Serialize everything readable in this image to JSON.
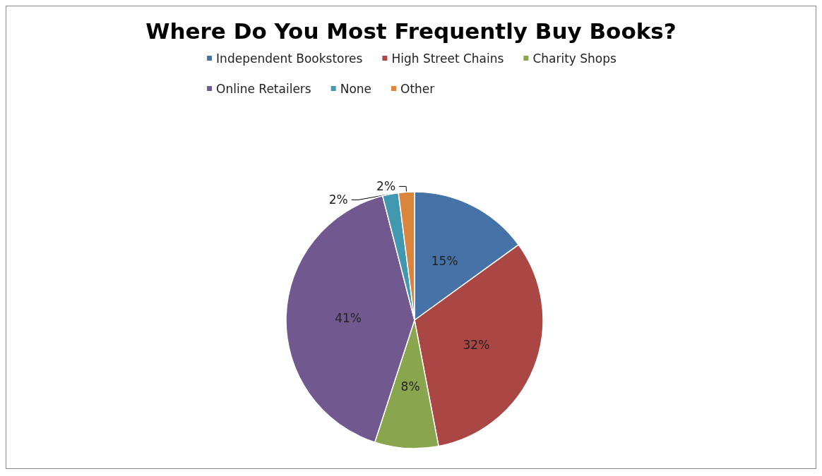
{
  "chart_data": {
    "type": "pie",
    "title": "Where Do You Most Frequently Buy Books?",
    "categories": [
      "Independent Bookstores",
      "High Street Chains",
      "Charity Shops",
      "Online Retailers",
      "None",
      "Other"
    ],
    "values": [
      15,
      32,
      8,
      41,
      2,
      2
    ],
    "colors": [
      "#4572a7",
      "#aa4643",
      "#89a54e",
      "#71588f",
      "#4198af",
      "#db843d"
    ],
    "value_labels": [
      "15%",
      "32%",
      "8%",
      "41%",
      "2%",
      "2%"
    ],
    "legend": "top"
  }
}
